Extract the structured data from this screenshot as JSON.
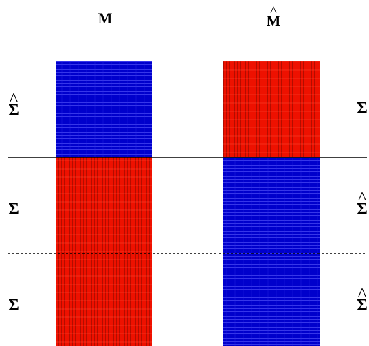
{
  "columns": [
    {
      "title": "M",
      "hat": false
    },
    {
      "title": "M",
      "hat": true
    }
  ],
  "left_labels": [
    {
      "symbol": "Σ",
      "hat": true
    },
    {
      "symbol": "Σ",
      "hat": false
    },
    {
      "symbol": "Σ",
      "hat": false
    }
  ],
  "right_labels": [
    {
      "symbol": "Σ",
      "hat": false
    },
    {
      "symbol": "Σ",
      "hat": true
    },
    {
      "symbol": "Σ",
      "hat": true
    }
  ],
  "hat_mark": "^",
  "colors": {
    "blue": "#0000cc",
    "red": "#ee1100",
    "divider": "#000000"
  },
  "column_blocks": [
    [
      "blue",
      "red",
      "red"
    ],
    [
      "red",
      "blue",
      "blue"
    ]
  ]
}
